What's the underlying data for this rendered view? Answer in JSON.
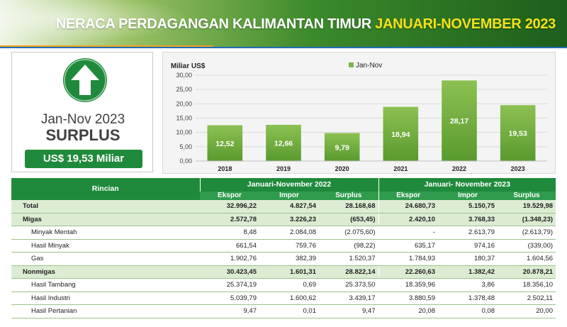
{
  "header": {
    "title_main": "NERACA PERDAGANGAN KALIMANTAN TIMUR ",
    "title_highlight": "JANUARI-NOVEMBER 2023"
  },
  "panel": {
    "period": "Jan-Nov 2023",
    "status": "SURPLUS",
    "amount": "US$ 19,53 Miliar",
    "icon": "up-arrow-icon"
  },
  "chart_data": {
    "type": "bar",
    "ylabel": "Miliar US$",
    "legend": [
      "Jan-Nov"
    ],
    "legend_position": "top-center",
    "categories": [
      "2018",
      "2019",
      "2020",
      "2021",
      "2022",
      "2023"
    ],
    "values": [
      12.52,
      12.66,
      9.79,
      18.94,
      28.17,
      19.53
    ],
    "value_labels": [
      "12,52",
      "12,66",
      "9,79",
      "18,94",
      "28,17",
      "19,53"
    ],
    "yticks": [
      "0,00",
      "5,00",
      "10,00",
      "15,00",
      "20,00",
      "25,00",
      "30,00"
    ],
    "ylim": [
      0,
      30
    ],
    "grid": true,
    "bar_color": "#7bb446"
  },
  "table": {
    "rincian": "Rincian",
    "group1": "Januari-November 2022",
    "group2": "Januari- November 2023",
    "cols": [
      "Ekspor",
      "Impor",
      "Surplus",
      "Ekspor",
      "Impor",
      "Surplus"
    ],
    "rows": [
      {
        "label": "Total",
        "values": [
          "32.996,22",
          "4.827,54",
          "28.168,68",
          "24.680,73",
          "5.150,75",
          "19.529,98"
        ]
      },
      {
        "label": "Migas",
        "values": [
          "2.572,78",
          "3.226,23",
          "(653,45)",
          "2.420,10",
          "3.768,33",
          "(1.348,23)"
        ]
      },
      {
        "label": "Minyak Mentah",
        "values": [
          "8,48",
          "2.084,08",
          "(2.075,60)",
          "-",
          "2.613,79",
          "(2.613,79)"
        ]
      },
      {
        "label": "Hasil  Minyak",
        "values": [
          "661,54",
          "759,76",
          "(98,22)",
          "635,17",
          "974,16",
          "(339,00)"
        ]
      },
      {
        "label": "Gas",
        "values": [
          "1.902,76",
          "382,39",
          "1.520,37",
          "1.784,93",
          "180,37",
          "1.604,56"
        ]
      },
      {
        "label": "Nonmigas",
        "values": [
          "30.423,45",
          "1.601,31",
          "28.822,14",
          "22.260,63",
          "1.382,42",
          "20.878,21"
        ]
      },
      {
        "label": "Hasil Tambang",
        "values": [
          "25.374,19",
          "0,69",
          "25.373,50",
          "18.359,96",
          "3,86",
          "18.356,10"
        ]
      },
      {
        "label": "Hasil Industri",
        "values": [
          "5.039,79",
          "1.600,62",
          "3.439,17",
          "3.880,59",
          "1.378,48",
          "2.502,11"
        ]
      },
      {
        "label": "Hasil Pertanian",
        "values": [
          "9,47",
          "0,01",
          "9,47",
          "20,08",
          "0,08",
          "20,00"
        ]
      }
    ]
  }
}
